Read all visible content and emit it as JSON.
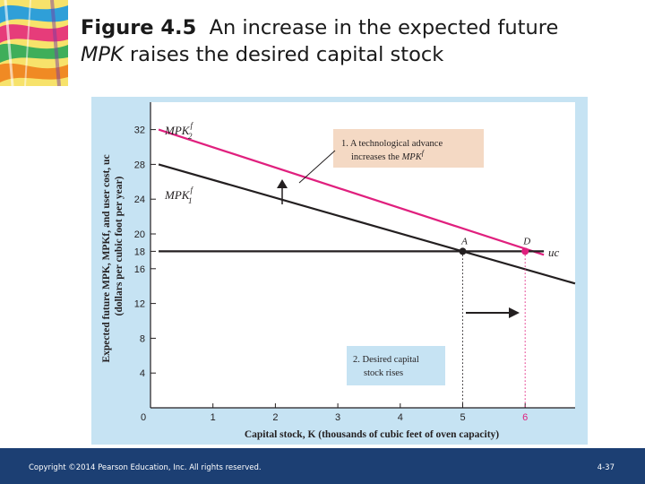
{
  "slide": {
    "title_number": "Figure 4.5",
    "title_line1": "An increase in the expected future",
    "title_line2_italic": "MPK",
    "title_line2_rest": " raises the desired capital stock",
    "footer_copyright": "Copyright ©2014 Pearson Education, Inc. All rights reserved.",
    "footer_page": "4-37"
  },
  "colors": {
    "panel_bg": "#c6e3f3",
    "mpk2_line": "#e0207e",
    "mpk1_line": "#231f20",
    "uc_line": "#231f20",
    "callout_peach": "#f4d9c4",
    "callout_blue": "#c6e3f3",
    "footer_bg": "#1c3f73"
  },
  "chart_data": {
    "type": "line",
    "xlabel": "Capital stock, K (thousands of cubic feet of oven capacity)",
    "ylabel_line1": "Expected future MPK, MPKf, and user cost, uc",
    "ylabel_line2": "(dollars per cubic foot per year)",
    "xlim": [
      0,
      6.8
    ],
    "ylim": [
      0,
      34
    ],
    "x_ticks": [
      0,
      1,
      2,
      3,
      4,
      5,
      6
    ],
    "x_tick_labels": [
      "0",
      "1",
      "2",
      "3",
      "4",
      "5",
      "6"
    ],
    "y_ticks": [
      4,
      8,
      12,
      16,
      18,
      20,
      24,
      28,
      32
    ],
    "y_tick_labels": [
      "4",
      "8",
      "12",
      "16",
      "18",
      "20",
      "24",
      "28",
      "32"
    ],
    "series": [
      {
        "name": "MPK2f",
        "label_main": "MPK",
        "label_sub": "2",
        "label_sup": "f",
        "color": "#e0207e",
        "x": [
          0.13,
          6.3
        ],
        "y": [
          32.0,
          17.6
        ]
      },
      {
        "name": "MPK1f",
        "label_main": "MPK",
        "label_sub": "1",
        "label_sup": "f",
        "color": "#231f20",
        "x": [
          0.13,
          6.8
        ],
        "y": [
          28.0,
          14.3
        ]
      },
      {
        "name": "uc",
        "label_main": "uc",
        "color": "#231f20",
        "x": [
          0.13,
          6.3
        ],
        "y": [
          18.0,
          18.0
        ]
      }
    ],
    "points": [
      {
        "label": "A",
        "x": 5.0,
        "y": 18.0,
        "color": "#231f20"
      },
      {
        "label": "D",
        "x": 6.0,
        "y": 18.0,
        "color": "#e0207e"
      }
    ],
    "annotations": [
      {
        "id": "tech",
        "line1": "1. A technological advance",
        "line2_prefix": "increases the ",
        "line2_italic": "MPK",
        "line2_sup": "f"
      },
      {
        "id": "desired",
        "line1": "2. Desired capital",
        "line2": "stock rises"
      }
    ],
    "grid": false
  }
}
